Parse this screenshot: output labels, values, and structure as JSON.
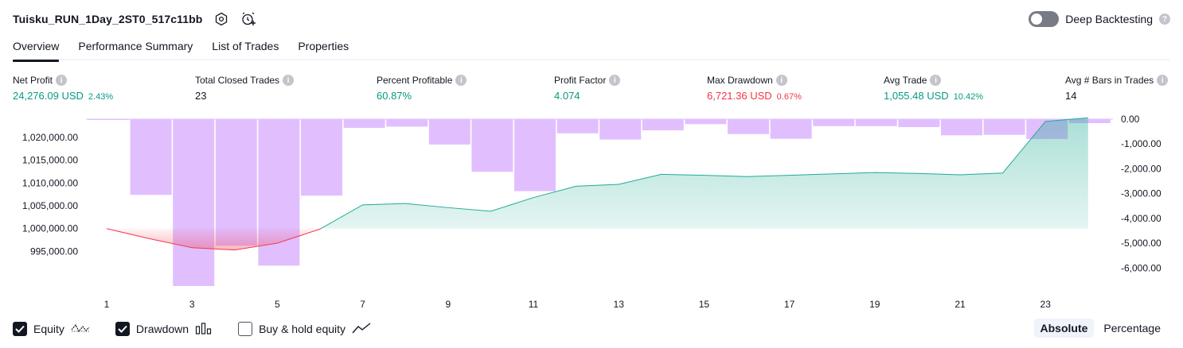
{
  "header": {
    "strategy_name": "Tuisku_RUN_1Day_2ST0_517c11bb",
    "settings_icon": "gear-icon",
    "add_alert_icon": "alarm-plus-icon"
  },
  "deep_backtesting": {
    "label": "Deep Backtesting",
    "enabled": false
  },
  "tabs": [
    {
      "label": "Overview",
      "active": true
    },
    {
      "label": "Performance Summary",
      "active": false
    },
    {
      "label": "List of Trades",
      "active": false
    },
    {
      "label": "Properties",
      "active": false
    }
  ],
  "stats": {
    "net_profit": {
      "label": "Net Profit",
      "value": "24,276.09 USD",
      "pct": "2.43%"
    },
    "total_closed_trades": {
      "label": "Total Closed Trades",
      "value": "23"
    },
    "percent_profitable": {
      "label": "Percent Profitable",
      "value": "60.87%"
    },
    "profit_factor": {
      "label": "Profit Factor",
      "value": "4.074"
    },
    "max_drawdown": {
      "label": "Max Drawdown",
      "value": "6,721.36 USD",
      "pct": "0.67%"
    },
    "avg_trade": {
      "label": "Avg Trade",
      "value": "1,055.48 USD",
      "pct": "10.42%"
    },
    "avg_bars": {
      "label": "Avg # Bars in Trades",
      "value": "14"
    }
  },
  "colors": {
    "equity_line": "#22ab94",
    "equity_fill": "#c9ece4",
    "loss_line": "#f23645",
    "drawdown_bar": "#e1bfff",
    "positive": "#089981",
    "negative": "#f23645"
  },
  "chart_data": {
    "type": "area",
    "x_ticks": [
      "1",
      "3",
      "5",
      "7",
      "9",
      "11",
      "13",
      "15",
      "17",
      "19",
      "21",
      "23"
    ],
    "left_axis": {
      "ticks": [
        "1,020,000.00",
        "1,015,000.00",
        "1,010,000.00",
        "1,005,000.00",
        "1,000,000.00",
        "995,000.00"
      ],
      "range": [
        993500,
        1024000
      ]
    },
    "right_axis": {
      "ticks": [
        "0.00",
        "-1,000.00",
        "-2,000.00",
        "-3,000.00",
        "-4,000.00",
        "-5,000.00",
        "-6,000.00"
      ],
      "range": [
        -6721.36,
        0
      ]
    },
    "series": [
      {
        "name": "Equity",
        "type": "line",
        "x": [
          1,
          2,
          3,
          4,
          5,
          6,
          7,
          8,
          9,
          10,
          11,
          12,
          13,
          14,
          15,
          16,
          17,
          18,
          19,
          20,
          21,
          22,
          23,
          24
        ],
        "values": [
          1000000,
          997800,
          995800,
          995300,
          996800,
          999900,
          1005200,
          1005500,
          1004600,
          1003800,
          1006800,
          1009300,
          1009700,
          1011900,
          1011700,
          1011400,
          1011700,
          1012000,
          1012300,
          1012100,
          1011800,
          1012200,
          1023500,
          1024300
        ]
      },
      {
        "name": "Drawdown",
        "type": "bar",
        "x": [
          1,
          2,
          3,
          4,
          5,
          6,
          7,
          8,
          9,
          10,
          11,
          12,
          13,
          14,
          15,
          16,
          17,
          18,
          19,
          20,
          21,
          22,
          23,
          24
        ],
        "values": [
          -30,
          -3050,
          -6721.36,
          -5100,
          -5900,
          -3080,
          -350,
          -300,
          -1020,
          -2120,
          -2900,
          -570,
          -820,
          -450,
          -200,
          -600,
          -790,
          -280,
          -280,
          -320,
          -650,
          -630,
          -800,
          -160
        ]
      }
    ]
  },
  "legend": {
    "equity": {
      "label": "Equity",
      "checked": true
    },
    "drawdown": {
      "label": "Drawdown",
      "checked": true
    },
    "buy_hold": {
      "label": "Buy & hold equity",
      "checked": false
    }
  },
  "view_modes": [
    {
      "label": "Absolute",
      "active": true
    },
    {
      "label": "Percentage",
      "active": false
    }
  ]
}
